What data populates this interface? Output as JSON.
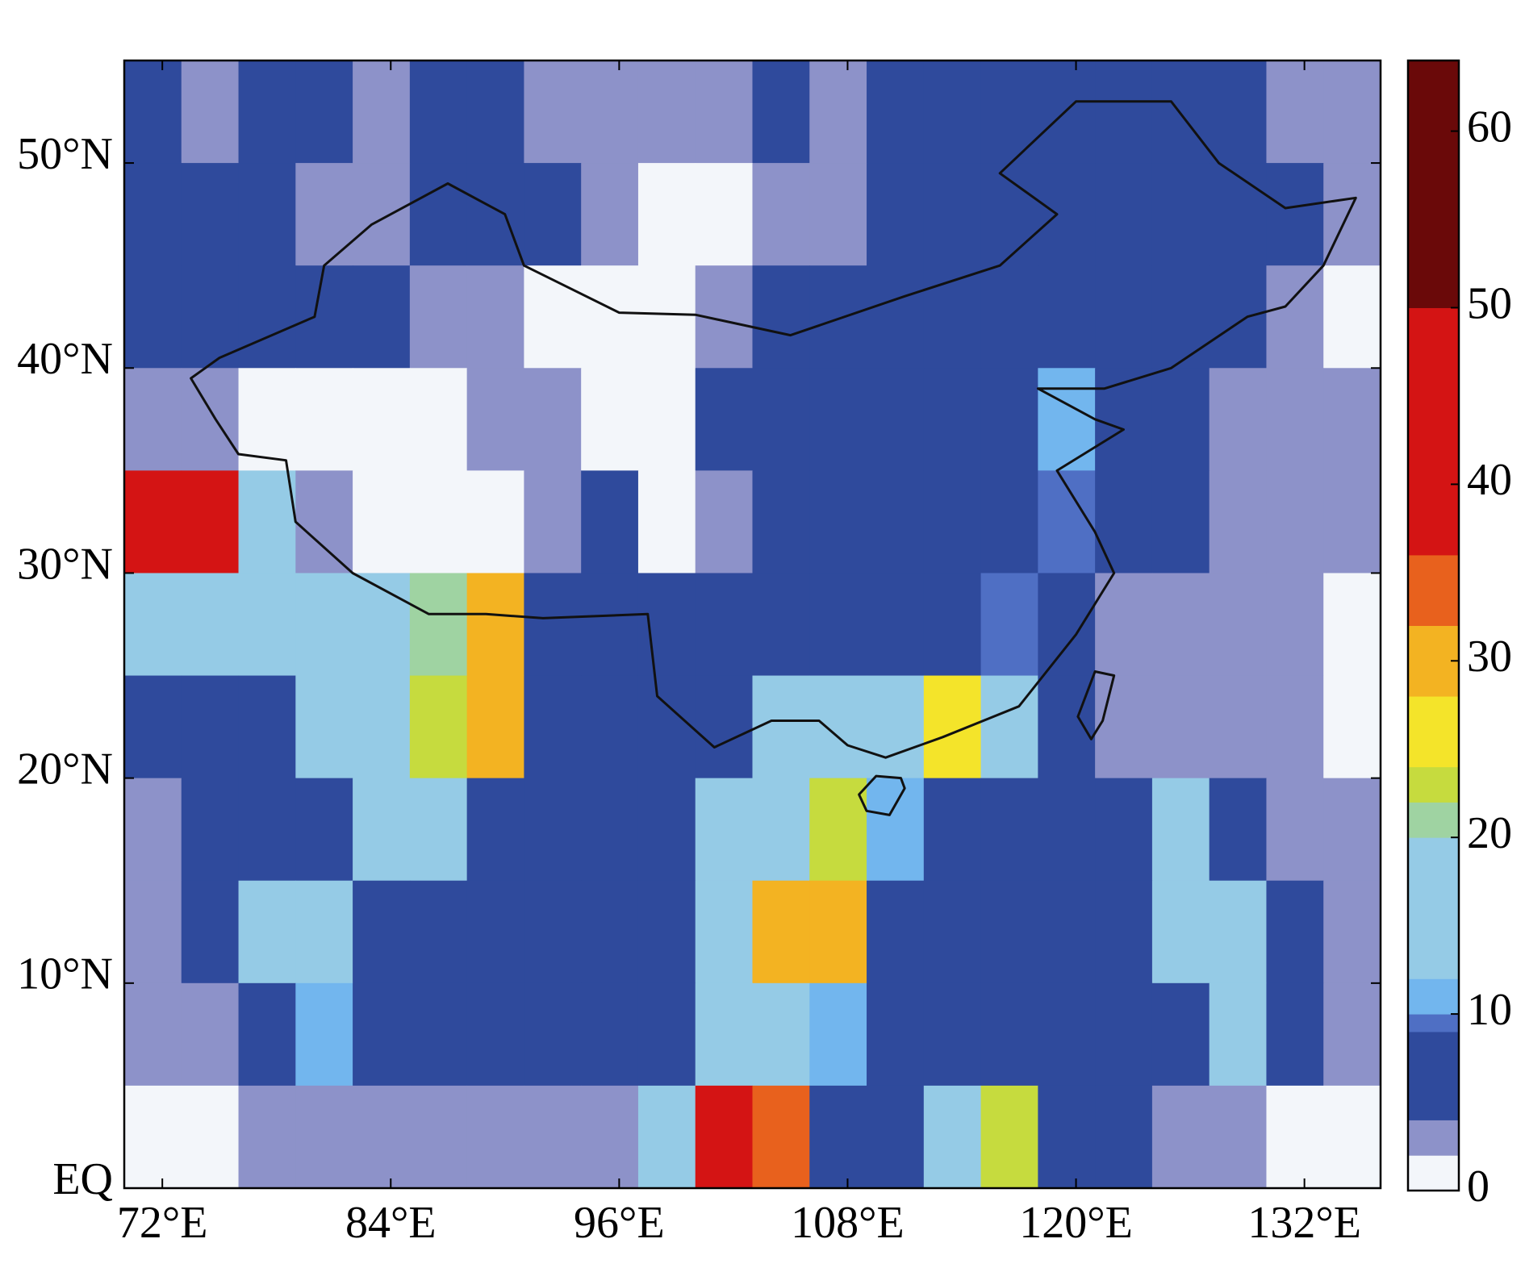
{
  "chart_data": {
    "type": "heatmap",
    "xlim": [
      70,
      136
    ],
    "ylim": [
      0,
      55
    ],
    "xticks": [
      {
        "value": 72,
        "label": "72°E"
      },
      {
        "value": 84,
        "label": "84°E"
      },
      {
        "value": 96,
        "label": "96°E"
      },
      {
        "value": 108,
        "label": "108°E"
      },
      {
        "value": 120,
        "label": "120°E"
      },
      {
        "value": 132,
        "label": "132°E"
      }
    ],
    "yticks": [
      {
        "value": 0,
        "label": "EQ"
      },
      {
        "value": 10,
        "label": "10°N"
      },
      {
        "value": 20,
        "label": "20°N"
      },
      {
        "value": 30,
        "label": "30°N"
      },
      {
        "value": 40,
        "label": "40°N"
      },
      {
        "value": 50,
        "label": "50°N"
      }
    ],
    "x_edges": [
      70,
      73,
      76,
      79,
      82,
      85,
      88,
      91,
      94,
      97,
      100,
      103,
      106,
      109,
      112,
      115,
      118,
      121,
      124,
      127,
      130,
      133,
      136
    ],
    "y_edges": [
      55,
      50,
      45,
      40,
      35,
      30,
      25,
      20,
      15,
      10,
      5,
      0
    ],
    "values": [
      [
        4,
        3,
        5,
        5,
        3,
        4,
        4,
        3,
        2,
        2,
        3,
        4,
        3,
        5,
        5,
        5,
        5,
        5,
        5,
        5,
        3,
        3
      ],
      [
        5,
        5,
        4,
        3,
        3,
        5,
        5,
        5,
        2,
        1,
        1,
        3,
        3,
        5,
        5,
        5,
        5,
        5,
        5,
        5,
        6,
        3
      ],
      [
        5,
        5,
        5,
        5,
        4,
        3,
        2,
        1,
        1,
        1,
        3,
        5,
        5,
        5,
        5,
        5,
        5,
        6,
        6,
        5,
        3,
        1
      ],
      [
        2,
        2,
        1,
        1,
        1,
        1,
        3,
        2,
        1,
        1,
        5,
        5,
        5,
        6,
        6,
        8,
        10,
        8,
        5,
        3,
        2,
        2
      ],
      [
        45,
        40,
        14,
        3,
        1,
        1,
        1,
        3,
        4,
        1,
        3,
        5,
        5,
        6,
        7,
        8,
        9,
        6,
        4,
        3,
        3,
        2
      ],
      [
        14,
        14,
        14,
        16,
        18,
        20,
        30,
        5,
        5,
        5,
        5,
        5,
        8,
        6,
        8,
        9,
        7,
        3,
        3,
        3,
        2,
        1
      ],
      [
        5,
        5,
        8,
        14,
        16,
        22,
        28,
        6,
        5,
        5,
        5,
        12,
        14,
        18,
        25,
        12,
        5,
        3,
        2,
        3,
        2,
        1
      ],
      [
        3,
        4,
        5,
        5,
        12,
        12,
        5,
        5,
        5,
        5,
        14,
        18,
        22,
        10,
        5,
        5,
        5,
        5,
        18,
        5,
        3,
        3
      ],
      [
        3,
        4,
        14,
        12,
        5,
        5,
        5,
        5,
        5,
        6,
        16,
        28,
        30,
        5,
        5,
        5,
        5,
        5,
        14,
        14,
        5,
        2
      ],
      [
        2,
        3,
        5,
        10,
        5,
        4,
        5,
        5,
        5,
        5,
        12,
        14,
        10,
        5,
        5,
        5,
        5,
        5,
        5,
        16,
        5,
        2
      ],
      [
        1,
        1,
        2,
        2,
        3,
        3,
        3,
        3,
        3,
        14,
        45,
        35,
        5,
        5,
        16,
        22,
        8,
        5,
        3,
        2,
        1,
        1
      ]
    ],
    "colorbar": {
      "lim": [
        0,
        64
      ],
      "ticks": [
        0,
        10,
        20,
        30,
        40,
        50,
        60
      ],
      "levels": [
        0,
        2,
        4,
        9,
        10,
        12,
        20,
        22,
        24,
        28,
        32,
        36,
        50,
        64
      ],
      "colors": [
        "#f3f6fa",
        "#8d92c9",
        "#2f4a9c",
        "#4f6fc4",
        "#72b6ee",
        "#95cbe6",
        "#9fd3a2",
        "#c6db3e",
        "#f4e42a",
        "#f3b322",
        "#e8611d",
        "#d41414",
        "#6a0909"
      ]
    }
  }
}
